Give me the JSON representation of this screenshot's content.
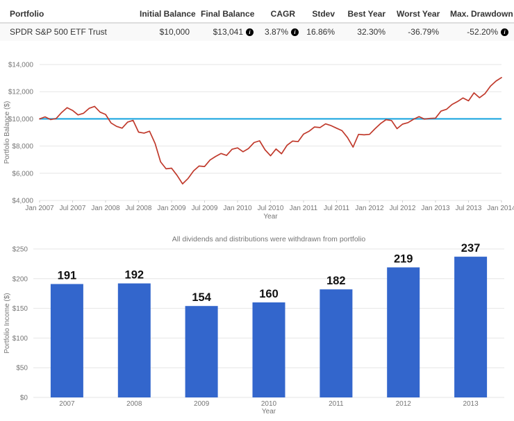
{
  "icons": {
    "info": "i"
  },
  "colors": {
    "grid": "#e6e6e6",
    "axis_text": "#757575",
    "tick": "#cccccc",
    "value_label": "#111111",
    "bar": "#3366cc",
    "line_red": "#c0392b",
    "line_blue": "#29abe2",
    "row_bg": "#f9f9f9"
  },
  "table": {
    "headers": [
      "Portfolio",
      "Initial Balance",
      "Final Balance",
      "CAGR",
      "Stdev",
      "Best Year",
      "Worst Year",
      "Max. Drawdown"
    ],
    "row": {
      "portfolio": "SPDR S&P 500 ETF Trust",
      "initial_balance": "$10,000",
      "final_balance": "$13,041",
      "cagr": "3.87%",
      "stdev": "16.86%",
      "best_year": "32.30%",
      "worst_year": "-36.79%",
      "max_drawdown": "-52.20%"
    }
  },
  "chart_data": [
    {
      "type": "line",
      "title": "",
      "xlabel": "Year",
      "ylabel": "Portfolio Balance ($)",
      "ylim": [
        4000,
        14000
      ],
      "grid": true,
      "legend": "none",
      "x_months": 84,
      "x_tick_interval": 6,
      "x_tick_labels": [
        "Jan 2007",
        "Jul 2007",
        "Jan 2008",
        "Jul 2008",
        "Jan 2009",
        "Jul 2009",
        "Jan 2010",
        "Jul 2010",
        "Jan 2011",
        "Jul 2011",
        "Jan 2012",
        "Jul 2012",
        "Jan 2013",
        "Jul 2013",
        "Jan 2014"
      ],
      "y_ticks": [
        {
          "value": 14000,
          "label": "$14,000"
        },
        {
          "value": 12000,
          "label": "$12,000"
        },
        {
          "value": 10000,
          "label": "$10,000"
        },
        {
          "value": 8000,
          "label": "$8,000"
        },
        {
          "value": 6000,
          "label": "$6,000"
        },
        {
          "value": 4000,
          "label": "$4,000"
        }
      ],
      "series": [
        {
          "name": "SPDR S&P 500 ETF Trust",
          "color": "#c0392b",
          "values": [
            10000,
            10150,
            9951,
            10027,
            10471,
            10826,
            10622,
            10290,
            10415,
            10774,
            10920,
            10497,
            10324,
            9700,
            9449,
            9318,
            9762,
            9888,
            9024,
            8955,
            9094,
            8190,
            6837,
            6327,
            6372,
            5849,
            5220,
            5615,
            6173,
            6533,
            6493,
            6977,
            7234,
            7456,
            7312,
            7763,
            7869,
            7583,
            7820,
            8261,
            8389,
            7723,
            7288,
            7786,
            7436,
            8059,
            8366,
            8327,
            8879,
            9086,
            9402,
            9362,
            9633,
            9504,
            9318,
            9132,
            8630,
            7923,
            8861,
            8825,
            8861,
            9273,
            9652,
            9942,
            9876,
            9280,
            9610,
            9724,
            9967,
            10166,
            9980,
            10037,
            10055,
            10571,
            10706,
            11063,
            11276,
            11541,
            11327,
            11913,
            11556,
            11863,
            12413,
            12781,
            13041
          ]
        },
        {
          "name": "Initial Balance",
          "color": "#29abe2",
          "constant_value": 10000
        }
      ]
    },
    {
      "type": "bar",
      "title": "All dividends and distributions were withdrawn from portfolio",
      "xlabel": "Year",
      "ylabel": "Portfolio Income ($)",
      "ylim": [
        0,
        250
      ],
      "grid": true,
      "legend": "none",
      "bar_color": "#3366cc",
      "categories": [
        "2007",
        "2008",
        "2009",
        "2010",
        "2011",
        "2012",
        "2013"
      ],
      "values": [
        191,
        192,
        154,
        160,
        182,
        219,
        237
      ],
      "y_ticks": [
        {
          "value": 250,
          "label": "$250"
        },
        {
          "value": 200,
          "label": "$200"
        },
        {
          "value": 150,
          "label": "$150"
        },
        {
          "value": 100,
          "label": "$100"
        },
        {
          "value": 50,
          "label": "$50"
        },
        {
          "value": 0,
          "label": "$0"
        }
      ]
    }
  ]
}
